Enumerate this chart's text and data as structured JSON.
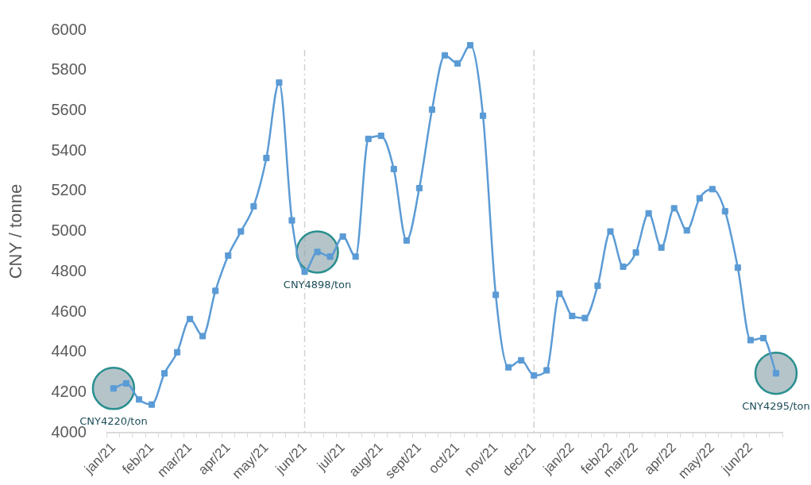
{
  "chart_data": {
    "type": "line",
    "ylabel": "CNY / tonne",
    "categories": [
      "jan/21",
      null,
      null,
      "feb/21",
      null,
      null,
      "mar/21",
      null,
      null,
      "apr/21",
      null,
      null,
      "may/21",
      null,
      null,
      "jun/21",
      null,
      null,
      "jul/21",
      null,
      null,
      "aug/21",
      null,
      null,
      "sept/21",
      null,
      null,
      "oct/21",
      null,
      null,
      "nov/21",
      null,
      null,
      "dec/21",
      null,
      null,
      "jan/22",
      null,
      null,
      "feb/22",
      null,
      "mar/22",
      null,
      null,
      "apr/22",
      null,
      null,
      "may/22",
      null,
      null,
      "jun/22",
      null,
      null
    ],
    "series": [
      {
        "color": "#5b9bd5",
        "values": [
          4220,
          4245,
          4165,
          4140,
          4295,
          4400,
          4565,
          4480,
          4705,
          4880,
          5000,
          5125,
          5365,
          5740,
          5055,
          4800,
          4898,
          4875,
          4975,
          4875,
          5460,
          5475,
          5310,
          4955,
          5215,
          5605,
          5875,
          5835,
          5925,
          5575,
          4685,
          4325,
          4360,
          4285,
          4310,
          4690,
          4580,
          4570,
          4730,
          5000,
          4825,
          4895,
          5090,
          4920,
          5115,
          5005,
          5165,
          5210,
          5100,
          4820,
          4460,
          4470,
          4295
        ]
      },
      {
        "type": "scatter",
        "marker": "circle",
        "color": "#8ca5ac",
        "values": [
          4220,
          null,
          null,
          null,
          null,
          null,
          null,
          null,
          null,
          null,
          null,
          null,
          null,
          null,
          null,
          null,
          4898,
          null,
          null,
          null,
          null,
          null,
          null,
          null,
          null,
          null,
          null,
          null,
          null,
          null,
          null,
          null,
          null,
          null,
          null,
          null,
          null,
          null,
          null,
          null,
          null,
          null,
          null,
          null,
          null,
          null,
          null,
          null,
          null,
          null,
          null,
          null,
          4295
        ]
      }
    ],
    "ylim": [
      4000,
      6000
    ],
    "yticks": [
      4000,
      4200,
      4400,
      4600,
      4800,
      5000,
      5200,
      5400,
      5600,
      5800,
      6000
    ],
    "ref_lines": [
      {
        "axis": "x",
        "value": "jun/21",
        "color": "#d0d0d0",
        "line_style": "dashed"
      },
      {
        "axis": "x",
        "value": "dec/21",
        "color": "#d0d0d0",
        "line_style": "dashed"
      }
    ],
    "annotations": [
      {
        "text": "CNY4220/ton",
        "y": 4220
      },
      {
        "text": "CNY4898/ton",
        "y": 4898
      },
      {
        "text": "CNY4295/ton",
        "y": 4295
      }
    ],
    "marker": "square",
    "line_style": "solid",
    "grid": false,
    "legend": false
  }
}
